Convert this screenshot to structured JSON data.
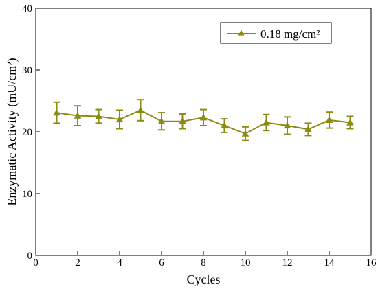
{
  "chart_data": {
    "type": "line",
    "title": "",
    "xlabel": "Cycles",
    "ylabel": "Enzymatic Activity (mU/cm²)",
    "xlim": [
      0,
      16
    ],
    "ylim": [
      0,
      40
    ],
    "xticks": [
      0,
      2,
      4,
      6,
      8,
      10,
      12,
      14,
      16
    ],
    "yticks": [
      0,
      10,
      20,
      30,
      40
    ],
    "grid": false,
    "legend_position": "top-right",
    "series": [
      {
        "name": "0.18 mg/cm²",
        "color": "#8b8b12",
        "marker": "triangle-up",
        "x": [
          1,
          2,
          3,
          4,
          5,
          6,
          7,
          8,
          9,
          10,
          11,
          12,
          13,
          14,
          15
        ],
        "y": [
          23.1,
          22.6,
          22.5,
          22.0,
          23.5,
          21.7,
          21.7,
          22.3,
          21.0,
          19.7,
          21.5,
          21.0,
          20.4,
          21.9,
          21.5
        ],
        "error": [
          1.7,
          1.6,
          1.1,
          1.5,
          1.7,
          1.4,
          1.2,
          1.3,
          1.1,
          1.1,
          1.3,
          1.4,
          1.0,
          1.3,
          1.0
        ]
      }
    ]
  }
}
